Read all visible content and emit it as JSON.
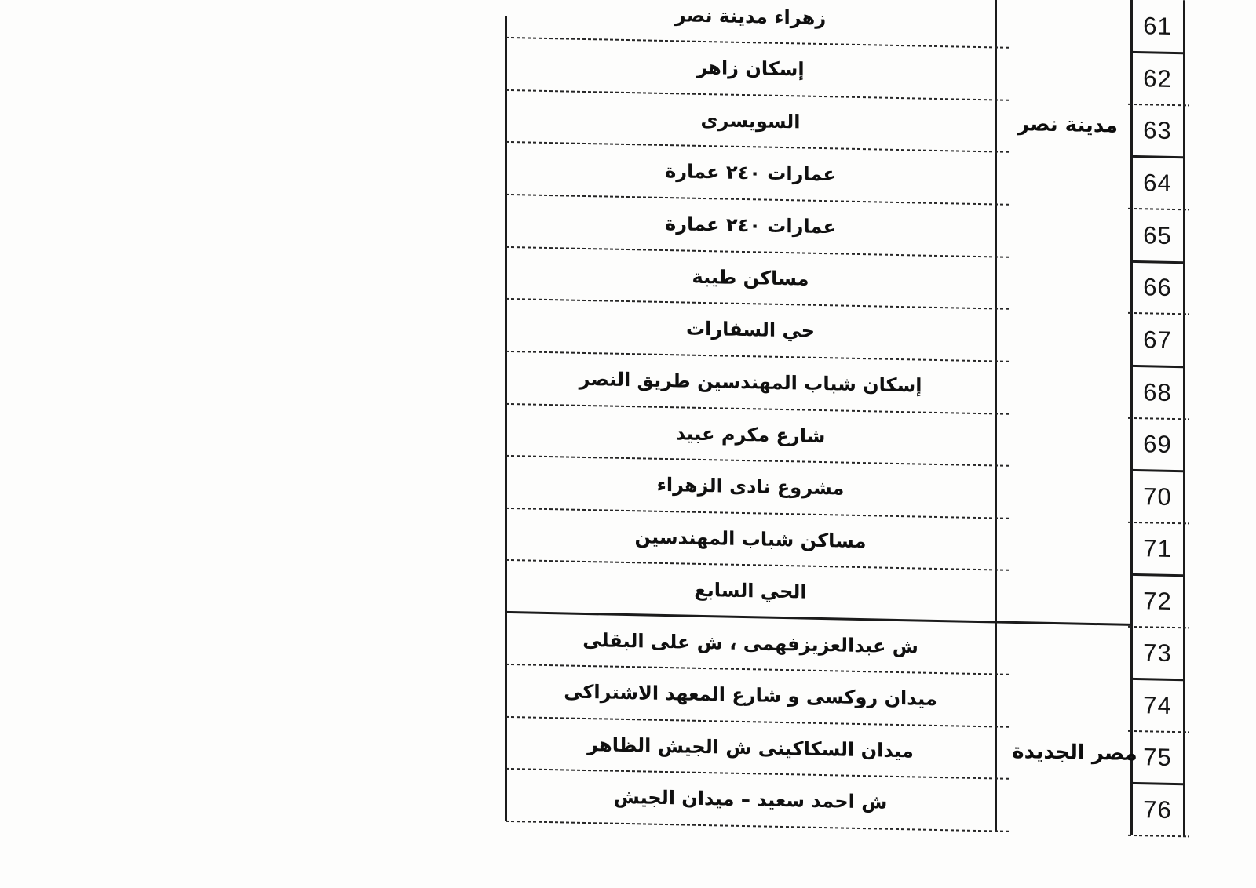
{
  "table": {
    "paper_color": "#fdfdfc",
    "ink_color": "#1b1b1b",
    "sections": [
      {
        "district": "مدينة نصر",
        "rows": [
          {
            "no": "61",
            "area": "زهراء مدينة نصر"
          },
          {
            "no": "62",
            "area": "إسكان زاهر"
          },
          {
            "no": "63",
            "area": "السويسرى"
          },
          {
            "no": "64",
            "area": "عمارات ٢٤٠ عمارة"
          },
          {
            "no": "65",
            "area": "عمارات ٢٤٠ عمارة"
          },
          {
            "no": "66",
            "area": "مساكن طيبة"
          },
          {
            "no": "67",
            "area": "حي السفارات"
          },
          {
            "no": "68",
            "area": "إسكان شباب المهندسين طريق النصر"
          },
          {
            "no": "69",
            "area": "شارع مكرم عبيد"
          },
          {
            "no": "70",
            "area": "مشروع نادى الزهراء"
          },
          {
            "no": "71",
            "area": "مساكن شباب المهندسين"
          },
          {
            "no": "72",
            "area": "الحي السابع"
          }
        ]
      },
      {
        "district": "مصر الجديدة",
        "rows": [
          {
            "no": "73",
            "area": "ش عبدالعزيزفهمى ، ش على البقلى"
          },
          {
            "no": "74",
            "area": "ميدان روكسى و شارع المعهد الاشتراكى"
          },
          {
            "no": "75",
            "area": "ميدان السكاكينى ش الجيش الظاهر"
          },
          {
            "no": "76",
            "area": "ش احمد سعيد – ميدان الجيش"
          }
        ]
      }
    ]
  }
}
